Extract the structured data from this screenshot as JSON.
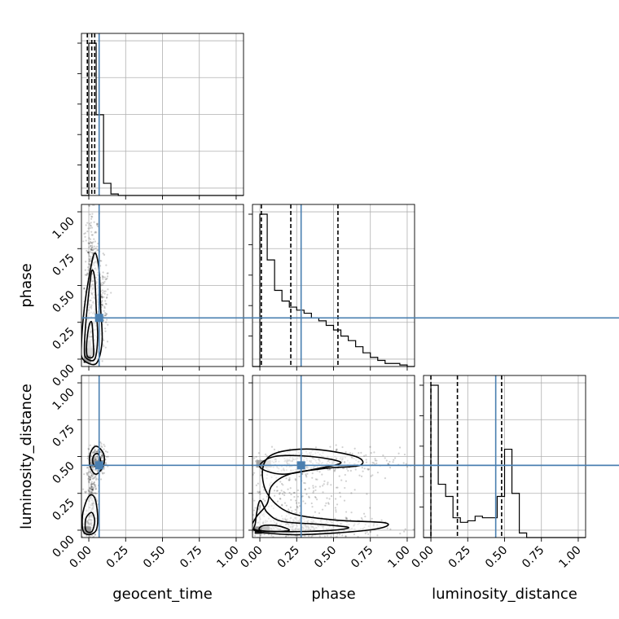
{
  "chart_data": {
    "type": "corner",
    "parameters": [
      "geocent_time",
      "phase",
      "luminosity_distance"
    ],
    "xlabels": [
      "geocent_time",
      "phase",
      "luminosity_distance"
    ],
    "ylabels": [
      "",
      "phase",
      "luminosity_distance"
    ],
    "tick_labels": [
      "0.00",
      "0.25",
      "0.50",
      "0.75",
      "1.00"
    ],
    "ticks": [
      0,
      0.25,
      0.5,
      0.75,
      1.0
    ],
    "range": [
      -0.05,
      1.05
    ],
    "grid": true,
    "injection": {
      "geocent_time": 0.07,
      "phase": 0.28,
      "luminosity_distance": 0.44
    },
    "quantiles": {
      "geocent_time": [
        -0.01,
        0.02,
        0.04
      ],
      "phase": [
        0.01,
        0.21,
        0.53
      ],
      "luminosity_distance": [
        0.0,
        0.18,
        0.48
      ]
    },
    "histograms": {
      "geocent_time": {
        "bins": [
          -0.05,
          0.0,
          0.05,
          0.1,
          0.15,
          0.2,
          0.25,
          0.3,
          0.35,
          0.4,
          0.45,
          0.5,
          0.55,
          0.6,
          0.65,
          0.7,
          0.75,
          0.8,
          0.85,
          0.9,
          0.95,
          1.0,
          1.05
        ],
        "counts": [
          0,
          1,
          0.53,
          0.08,
          0.01,
          0,
          0,
          0,
          0,
          0,
          0,
          0,
          0,
          0,
          0,
          0,
          0,
          0,
          0,
          0,
          0,
          0
        ]
      },
      "phase": {
        "bins": [
          -0.05,
          0.0,
          0.05,
          0.1,
          0.15,
          0.2,
          0.25,
          0.3,
          0.35,
          0.4,
          0.45,
          0.5,
          0.55,
          0.6,
          0.65,
          0.7,
          0.75,
          0.8,
          0.85,
          0.9,
          0.95,
          1.0,
          1.05
        ],
        "counts": [
          0,
          1.0,
          0.7,
          0.5,
          0.43,
          0.39,
          0.37,
          0.35,
          0.32,
          0.3,
          0.27,
          0.24,
          0.2,
          0.17,
          0.13,
          0.09,
          0.06,
          0.04,
          0.02,
          0.02,
          0.01,
          0
        ]
      },
      "luminosity_distance": {
        "bins": [
          -0.05,
          0.0,
          0.05,
          0.1,
          0.15,
          0.2,
          0.25,
          0.3,
          0.35,
          0.4,
          0.45,
          0.5,
          0.55,
          0.6,
          0.65,
          0.7,
          0.75,
          0.8,
          0.85,
          0.9,
          0.95,
          1.0,
          1.05
        ],
        "counts": [
          0,
          1.0,
          0.35,
          0.27,
          0.13,
          0.1,
          0.11,
          0.14,
          0.13,
          0.13,
          0.27,
          0.58,
          0.29,
          0.03,
          0,
          0,
          0,
          0,
          0,
          0,
          0,
          0
        ]
      }
    },
    "scatter_panels": [
      {
        "x": "geocent_time",
        "y": "phase",
        "samples_blobs": [
          {
            "cx": 0.02,
            "cy": 0.5,
            "sx": 0.025,
            "sy": 0.28,
            "n": 380
          },
          {
            "cx": 0.09,
            "cy": 0.35,
            "sx": 0.025,
            "sy": 0.15,
            "n": 140
          }
        ],
        "contours": [
          [
            [
              -0.04,
              0.0
            ],
            [
              0.05,
              -0.03
            ],
            [
              0.09,
              0.12
            ],
            [
              0.08,
              0.35
            ],
            [
              0.07,
              0.6
            ],
            [
              0.04,
              0.72
            ],
            [
              0.0,
              0.55
            ],
            [
              -0.03,
              0.35
            ],
            [
              -0.05,
              0.1
            ]
          ],
          [
            [
              -0.02,
              0.01
            ],
            [
              0.04,
              0.0
            ],
            [
              0.06,
              0.15
            ],
            [
              0.05,
              0.35
            ],
            [
              0.04,
              0.55
            ],
            [
              0.02,
              0.6
            ],
            [
              0.0,
              0.45
            ],
            [
              -0.02,
              0.25
            ],
            [
              -0.03,
              0.08
            ]
          ],
          [
            [
              -0.01,
              0.02
            ],
            [
              0.03,
              0.02
            ],
            [
              0.03,
              0.12
            ],
            [
              0.02,
              0.25
            ],
            [
              0.0,
              0.22
            ],
            [
              -0.015,
              0.1
            ]
          ]
        ],
        "dense_cells": [
          [
            -0.01,
            0.0,
            1.0
          ],
          [
            -0.01,
            0.05,
            0.55
          ],
          [
            0.02,
            0.05,
            0.35
          ],
          [
            -0.01,
            0.1,
            0.3
          ]
        ]
      },
      {
        "x": "geocent_time",
        "y": "luminosity_distance",
        "samples_blobs": [
          {
            "cx": 0.02,
            "cy": 0.25,
            "sx": 0.02,
            "sy": 0.12,
            "n": 200
          },
          {
            "cx": 0.06,
            "cy": 0.48,
            "sx": 0.03,
            "sy": 0.05,
            "n": 180
          },
          {
            "cx": 0.0,
            "cy": 0.02,
            "sx": 0.02,
            "sy": 0.05,
            "n": 120
          }
        ],
        "contours": [
          [
            [
              -0.04,
              0.0
            ],
            [
              0.0,
              -0.03
            ],
            [
              0.05,
              0.0
            ],
            [
              0.06,
              0.1
            ],
            [
              0.04,
              0.22
            ],
            [
              0.0,
              0.23
            ],
            [
              -0.04,
              0.12
            ]
          ],
          [
            [
              -0.02,
              0.0
            ],
            [
              0.02,
              -0.01
            ],
            [
              0.04,
              0.06
            ],
            [
              0.02,
              0.12
            ],
            [
              -0.02,
              0.08
            ]
          ],
          [
            [
              0.01,
              0.43
            ],
            [
              0.05,
              0.38
            ],
            [
              0.1,
              0.44
            ],
            [
              0.1,
              0.52
            ],
            [
              0.05,
              0.57
            ],
            [
              0.01,
              0.52
            ]
          ],
          [
            [
              0.03,
              0.45
            ],
            [
              0.06,
              0.43
            ],
            [
              0.08,
              0.47
            ],
            [
              0.06,
              0.52
            ],
            [
              0.03,
              0.5
            ]
          ]
        ],
        "dense_cells": [
          [
            -0.01,
            0.0,
            1.0
          ],
          [
            0.04,
            0.45,
            0.45
          ]
        ]
      },
      {
        "x": "phase",
        "y": "luminosity_distance",
        "samples_blobs": [
          {
            "cx": 0.3,
            "cy": 0.02,
            "sx": 0.25,
            "sy": 0.04,
            "n": 450
          },
          {
            "cx": 0.35,
            "cy": 0.46,
            "sx": 0.3,
            "sy": 0.05,
            "n": 380
          },
          {
            "cx": 0.2,
            "cy": 0.25,
            "sx": 0.2,
            "sy": 0.12,
            "n": 220
          }
        ],
        "contours": [
          [
            [
              -0.04,
              0.0
            ],
            [
              0.2,
              -0.03
            ],
            [
              0.5,
              -0.02
            ],
            [
              0.8,
              0.01
            ],
            [
              0.85,
              0.05
            ],
            [
              0.5,
              0.07
            ],
            [
              0.2,
              0.12
            ],
            [
              0.05,
              0.25
            ],
            [
              0.02,
              0.42
            ],
            [
              0.1,
              0.52
            ],
            [
              0.35,
              0.55
            ],
            [
              0.65,
              0.5
            ],
            [
              0.68,
              0.44
            ],
            [
              0.45,
              0.42
            ],
            [
              0.2,
              0.38
            ],
            [
              0.08,
              0.3
            ],
            [
              0.05,
              0.18
            ],
            [
              -0.03,
              0.08
            ]
          ],
          [
            [
              -0.02,
              0.0
            ],
            [
              0.2,
              -0.01
            ],
            [
              0.5,
              0.0
            ],
            [
              0.6,
              0.02
            ],
            [
              0.4,
              0.04
            ],
            [
              0.15,
              0.06
            ],
            [
              0.05,
              0.12
            ],
            [
              0.0,
              0.2
            ],
            [
              -0.03,
              0.05
            ]
          ],
          [
            [
              0.0,
              0.43
            ],
            [
              0.15,
              0.38
            ],
            [
              0.4,
              0.42
            ],
            [
              0.55,
              0.46
            ],
            [
              0.35,
              0.5
            ],
            [
              0.1,
              0.5
            ]
          ],
          [
            [
              0.0,
              0.0
            ],
            [
              0.1,
              -0.01
            ],
            [
              0.2,
              0.0
            ],
            [
              0.12,
              0.03
            ],
            [
              0.02,
              0.03
            ]
          ]
        ],
        "dense_cells": [
          [
            -0.01,
            0.0,
            1.0
          ],
          [
            0.04,
            0.0,
            0.6
          ],
          [
            0.0,
            0.45,
            0.4
          ],
          [
            0.05,
            0.45,
            0.3
          ]
        ]
      }
    ]
  }
}
